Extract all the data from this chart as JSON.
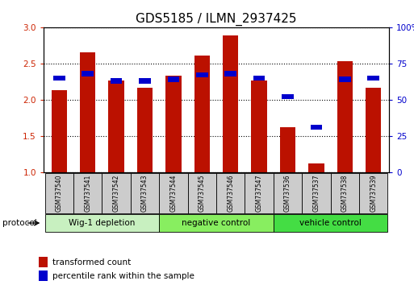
{
  "title": "GDS5185 / ILMN_2937425",
  "samples": [
    "GSM737540",
    "GSM737541",
    "GSM737542",
    "GSM737543",
    "GSM737544",
    "GSM737545",
    "GSM737546",
    "GSM737547",
    "GSM737536",
    "GSM737537",
    "GSM737538",
    "GSM737539"
  ],
  "red_values": [
    2.13,
    2.65,
    2.27,
    2.17,
    2.33,
    2.61,
    2.88,
    2.26,
    1.62,
    1.12,
    2.53,
    2.17
  ],
  "blue_percentile": [
    65,
    68,
    63,
    63,
    64,
    67,
    68,
    65,
    52,
    31,
    64,
    65
  ],
  "groups": [
    {
      "label": "Wig-1 depletion",
      "start": 0,
      "end": 3
    },
    {
      "label": "negative control",
      "start": 4,
      "end": 7
    },
    {
      "label": "vehicle control",
      "start": 8,
      "end": 11
    }
  ],
  "ylim_left": [
    1.0,
    3.0
  ],
  "ylim_right": [
    0,
    100
  ],
  "yticks_left": [
    1.0,
    1.5,
    2.0,
    2.5,
    3.0
  ],
  "yticks_right": [
    0,
    25,
    50,
    75,
    100
  ],
  "bar_color": "#bb1100",
  "blue_color": "#0000cc",
  "title_fontsize": 11,
  "left_tick_color": "#cc2200",
  "right_tick_color": "#0000cc",
  "bar_width": 0.55,
  "protocol_label": "protocol",
  "legend_red": "transformed count",
  "legend_blue": "percentile rank within the sample",
  "group_colors": [
    "#c8f0c0",
    "#88ee60",
    "#44dd44"
  ]
}
